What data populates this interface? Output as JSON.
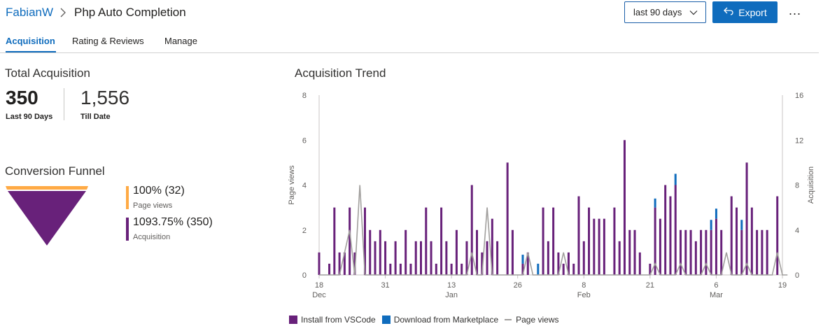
{
  "breadcrumb": {
    "owner": "FabianW",
    "separator": ">",
    "extension": "Php Auto Completion"
  },
  "toolbar": {
    "range": "last 90 days",
    "export_label": "Export",
    "more_label": "..."
  },
  "tabs": [
    {
      "label": "Acquisition",
      "active": true
    },
    {
      "label": "Rating & Reviews",
      "active": false
    },
    {
      "label": "Manage",
      "active": false
    }
  ],
  "total_acquisition": {
    "title": "Total Acquisition",
    "last_90_value": "350",
    "last_90_label": "Last 90 Days",
    "till_date_value": "1,556",
    "till_date_label": "Till Date"
  },
  "conversion_funnel": {
    "title": "Conversion Funnel",
    "items": [
      {
        "value": "100% (32)",
        "label": "Page views",
        "color": "#ffaa44"
      },
      {
        "value": "1093.75% (350)",
        "label": "Acquisition",
        "color": "#68217a"
      }
    ]
  },
  "chart_data": {
    "type": "bar",
    "title": "Acquisition Trend",
    "ylabel_left": "Page views",
    "ylabel_right": "Acquisition",
    "ylim_left": [
      0,
      8
    ],
    "ylim_right": [
      0,
      16
    ],
    "yticks_left": [
      "0",
      "2",
      "4",
      "6",
      "8"
    ],
    "yticks_right": [
      "0",
      "4",
      "8",
      "12",
      "16"
    ],
    "x_ticks": [
      {
        "day": 0,
        "label": "18",
        "sub": "Dec"
      },
      {
        "day": 13,
        "label": "31",
        "sub": ""
      },
      {
        "day": 26,
        "label": "13",
        "sub": "Jan"
      },
      {
        "day": 39,
        "label": "26",
        "sub": ""
      },
      {
        "day": 52,
        "label": "8",
        "sub": "Feb"
      },
      {
        "day": 65,
        "label": "21",
        "sub": ""
      },
      {
        "day": 78,
        "label": "6",
        "sub": "Mar"
      },
      {
        "day": 91,
        "label": "19",
        "sub": ""
      }
    ],
    "x_range": [
      0,
      91
    ],
    "series": [
      {
        "name": "Install from VSCode",
        "color": "#68217a",
        "axis": "left",
        "values": [
          1,
          0,
          0.5,
          3,
          1,
          1,
          3,
          1,
          0,
          3,
          2,
          1.5,
          2,
          1.5,
          0.5,
          1.5,
          0.5,
          2,
          0.5,
          1.5,
          1.5,
          3,
          1.5,
          0.5,
          3,
          1.5,
          0.5,
          2,
          0.5,
          1.5,
          4,
          2,
          1,
          1.5,
          2.5,
          1.5,
          0,
          5,
          2,
          0,
          0.5,
          1,
          0,
          0,
          3,
          1.5,
          3,
          1,
          0.5,
          1,
          0.5,
          3.5,
          1.5,
          3,
          2.5,
          2.5,
          2.5,
          0,
          3,
          1.5,
          6,
          2,
          2,
          1,
          0,
          0.5,
          3,
          2.5,
          4,
          3.5,
          4,
          2,
          2,
          2,
          1.5,
          2,
          2,
          2,
          2.5,
          2,
          0,
          3.5,
          3,
          2,
          5,
          3,
          2,
          2,
          2,
          0,
          3.5,
          0
        ]
      },
      {
        "name": "Download from Marketplace",
        "color": "#0f6cbd",
        "axis": "left",
        "values": [
          0,
          0,
          0,
          0,
          0,
          0,
          0,
          0,
          0,
          0,
          0,
          0,
          0,
          0,
          0,
          0,
          0,
          0,
          0,
          0,
          0,
          0,
          0,
          0,
          0,
          0,
          0,
          0,
          0,
          0,
          0,
          0,
          0,
          0,
          0,
          0,
          0,
          0,
          0,
          0,
          0.4,
          0,
          0,
          0.5,
          0,
          0,
          0,
          0,
          0,
          0,
          0,
          0,
          0,
          0,
          0,
          0,
          0,
          0,
          0,
          0,
          0,
          0,
          0,
          0,
          0,
          0,
          0.4,
          0,
          0,
          0,
          0.5,
          0,
          0,
          0,
          0,
          0,
          0,
          0.45,
          0.45,
          0,
          0,
          0,
          0,
          0.45,
          0,
          0,
          0,
          0,
          0,
          0,
          0,
          0,
          0
        ]
      },
      {
        "name": "Page views",
        "color": "#a19f9d",
        "axis": "left",
        "values": [
          0,
          0,
          0,
          0,
          0,
          1,
          2,
          0,
          4,
          0,
          0,
          0,
          0,
          0,
          0,
          0,
          0,
          0,
          0,
          0,
          0,
          0,
          0,
          0,
          0,
          0,
          0,
          0,
          0,
          0,
          1,
          0,
          0,
          3,
          0,
          0,
          0,
          0,
          0,
          0,
          0,
          1,
          0,
          0,
          0,
          0,
          0,
          0,
          1,
          0,
          0,
          0,
          0,
          0,
          0,
          0,
          0,
          0,
          0,
          0,
          0,
          0,
          0,
          0,
          0,
          0,
          0.5,
          0,
          0,
          0,
          0,
          0.5,
          0,
          0,
          0,
          0,
          0.5,
          0,
          0,
          0,
          1,
          0,
          0,
          0,
          0.5,
          0,
          0,
          0,
          0,
          0,
          1,
          0,
          0
        ]
      }
    ]
  },
  "legend": [
    {
      "label": "Install from VSCode",
      "color": "#68217a",
      "kind": "box"
    },
    {
      "label": "Download from Marketplace",
      "color": "#0f6cbd",
      "kind": "box"
    },
    {
      "label": "Page views",
      "color": "#a19f9d",
      "kind": "line"
    }
  ]
}
